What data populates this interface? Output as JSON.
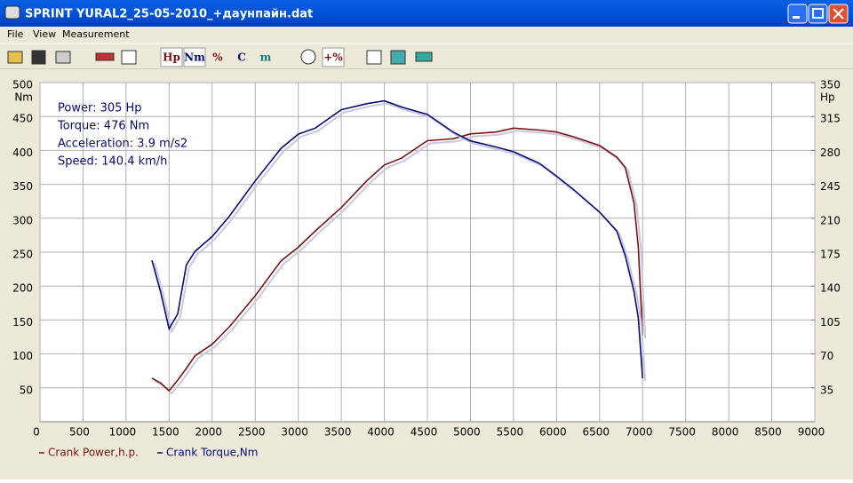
{
  "window": {
    "title": "SPRINT  YURAL2_25-05-2010_+даунпайн.dat"
  },
  "menu": [
    "File",
    "View",
    "Measurement"
  ],
  "toolbar": [
    "Hp",
    "Nm",
    "%",
    "C",
    "m",
    "+%"
  ],
  "chart_data": {
    "type": "line",
    "annotations": [
      "Power: 305 Hp",
      "Torque: 476 Nm",
      "Acceleration: 3.9 m/s2",
      "Speed: 140.4 km/h"
    ],
    "y_unit": "Nm",
    "y2_unit": "Hp",
    "x": [
      1300,
      1400,
      1500,
      1600,
      1700,
      1800,
      2000,
      2200,
      2500,
      2800,
      3000,
      3200,
      3500,
      3800,
      4000,
      4200,
      4500,
      4800,
      5000,
      5300,
      5500,
      5800,
      6000,
      6200,
      6500,
      6700,
      6800,
      6900,
      6950,
      7000
    ],
    "series": [
      {
        "name": "Crank Power,h.p.",
        "color": "#7a1212",
        "axis": "y2",
        "values": [
          45,
          40,
          32,
          43,
          55,
          68,
          80,
          98,
          130,
          166,
          180,
          197,
          221,
          249,
          265,
          272,
          290,
          292,
          297,
          299,
          303,
          301,
          299,
          294,
          285,
          273,
          262,
          226,
          180,
          89
        ]
      },
      {
        "name": "Crank Torque,Nm",
        "color": "#0a0a78",
        "values": [
          238,
          192,
          137,
          159,
          231,
          251,
          273,
          303,
          355,
          403,
          424,
          433,
          460,
          469,
          473,
          464,
          453,
          427,
          414,
          405,
          398,
          381,
          362,
          342,
          309,
          281,
          244,
          192,
          153,
          64
        ]
      }
    ],
    "xlim": [
      0,
      9000
    ],
    "xticks": [
      0,
      500,
      1000,
      1500,
      2000,
      2500,
      3000,
      3500,
      4000,
      4500,
      5000,
      5500,
      6000,
      6500,
      7000,
      7500,
      8000,
      8500,
      9000
    ],
    "ylim": [
      0,
      500
    ],
    "yticks": [
      50,
      100,
      150,
      200,
      250,
      300,
      350,
      400,
      450,
      500
    ],
    "y2lim": [
      0,
      350
    ],
    "y2ticks": [
      35,
      70,
      105,
      140,
      175,
      210,
      245,
      280,
      315,
      350
    ],
    "grid": true
  }
}
